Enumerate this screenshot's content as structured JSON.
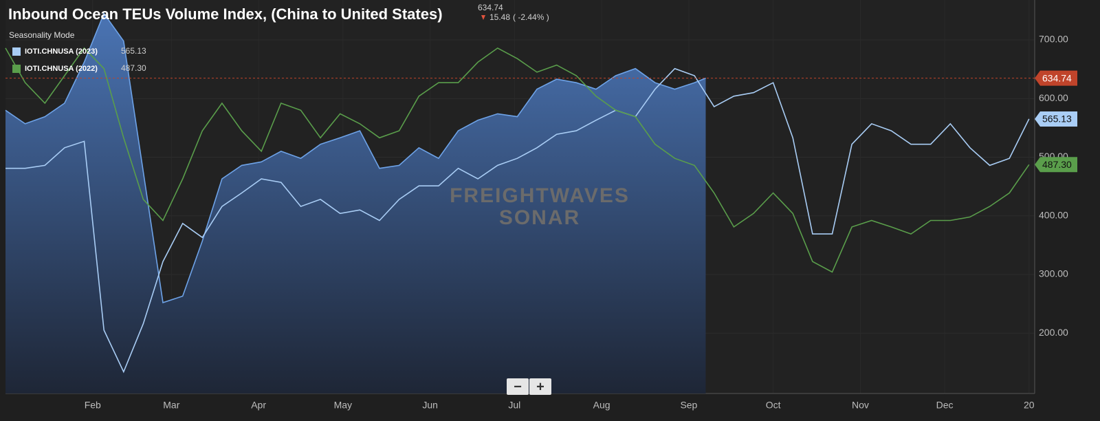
{
  "chart_data": {
    "type": "line",
    "title": "Inbound Ocean TEUs Volume Index, (China to United States)",
    "price_label": "634.74",
    "change": "15.48",
    "change_pct": "( -2.44% )",
    "mode": "Seasonality Mode",
    "watermark": [
      "FREIGHTWAVES",
      "SONAR"
    ],
    "zoom": [
      "−",
      "+"
    ],
    "xlim": [
      0,
      366
    ],
    "xticks": [
      {
        "value": 31,
        "label": "Feb"
      },
      {
        "value": 59,
        "label": "Mar"
      },
      {
        "value": 90,
        "label": "Apr"
      },
      {
        "value": 120,
        "label": "May"
      },
      {
        "value": 151,
        "label": "Jun"
      },
      {
        "value": 181,
        "label": "Jul"
      },
      {
        "value": 212,
        "label": "Aug"
      },
      {
        "value": 243,
        "label": "Sep"
      },
      {
        "value": 273,
        "label": "Oct"
      },
      {
        "value": 304,
        "label": "Nov"
      },
      {
        "value": 334,
        "label": "Dec"
      },
      {
        "value": 364,
        "label": "20"
      }
    ],
    "ylim": [
      97,
      768
    ],
    "yticks": [
      {
        "value": 200,
        "label": "200.00"
      },
      {
        "value": 300,
        "label": "300.00"
      },
      {
        "value": 400,
        "label": "400.00"
      },
      {
        "value": 500,
        "label": "500.00"
      },
      {
        "value": 600,
        "label": "600.00"
      },
      {
        "value": 700,
        "label": "700.00"
      }
    ],
    "area": {
      "color": "#6ea3e8",
      "last_color": "#c0442b",
      "last_label": "634.74",
      "x": [
        0,
        7,
        14,
        21,
        28,
        35,
        42,
        49,
        56,
        63,
        70,
        77,
        84,
        91,
        98,
        105,
        112,
        119,
        126,
        133,
        140,
        147,
        154,
        161,
        168,
        175,
        182,
        189,
        196,
        203,
        210,
        217,
        224,
        231,
        238,
        245,
        249
      ],
      "values": [
        580,
        557,
        569,
        592,
        662,
        745,
        698,
        475,
        252,
        263,
        357,
        463,
        486,
        492,
        510,
        498,
        522,
        533,
        545,
        481,
        486,
        516,
        498,
        545,
        563,
        574,
        569,
        616,
        633,
        627,
        616,
        639,
        651,
        627,
        616,
        627,
        634.74
      ]
    },
    "x": [
      0,
      7,
      14,
      21,
      28,
      35,
      42,
      49,
      56,
      63,
      70,
      77,
      84,
      91,
      98,
      105,
      112,
      119,
      126,
      133,
      140,
      147,
      154,
      161,
      168,
      175,
      182,
      189,
      196,
      203,
      210,
      217,
      224,
      231,
      238,
      245,
      252,
      259,
      266,
      273,
      280,
      287,
      294,
      301,
      308,
      315,
      322,
      329,
      336,
      343,
      350,
      357,
      364
    ],
    "series": [
      {
        "name": "IOTI.CHNUSA (2023)",
        "color": "#a9cdf5",
        "last_label": "565.13",
        "values": [
          481,
          481,
          486,
          516,
          527,
          205,
          134,
          216,
          322,
          387,
          363,
          416,
          439,
          463,
          457,
          416,
          428,
          404,
          410,
          392,
          428,
          451,
          451,
          481,
          463,
          486,
          498,
          516,
          539,
          545,
          563,
          580,
          569,
          616,
          651,
          639,
          586,
          604,
          610,
          627,
          533,
          369,
          369,
          522,
          557,
          545,
          522,
          522,
          557,
          516,
          486,
          498,
          565.13
        ]
      },
      {
        "name": "IOTI.CHNUSA (2022)",
        "color": "#5a9e4b",
        "last_label": "487.30",
        "values": [
          686,
          627,
          592,
          639,
          686,
          651,
          533,
          428,
          392,
          463,
          545,
          592,
          545,
          510,
          592,
          580,
          533,
          574,
          557,
          533,
          545,
          604,
          627,
          627,
          662,
          686,
          668,
          645,
          657,
          639,
          604,
          580,
          569,
          522,
          498,
          486,
          439,
          381,
          404,
          439,
          404,
          322,
          304,
          381,
          392,
          381,
          369,
          392,
          392,
          398,
          416,
          439,
          487.3
        ]
      }
    ]
  }
}
